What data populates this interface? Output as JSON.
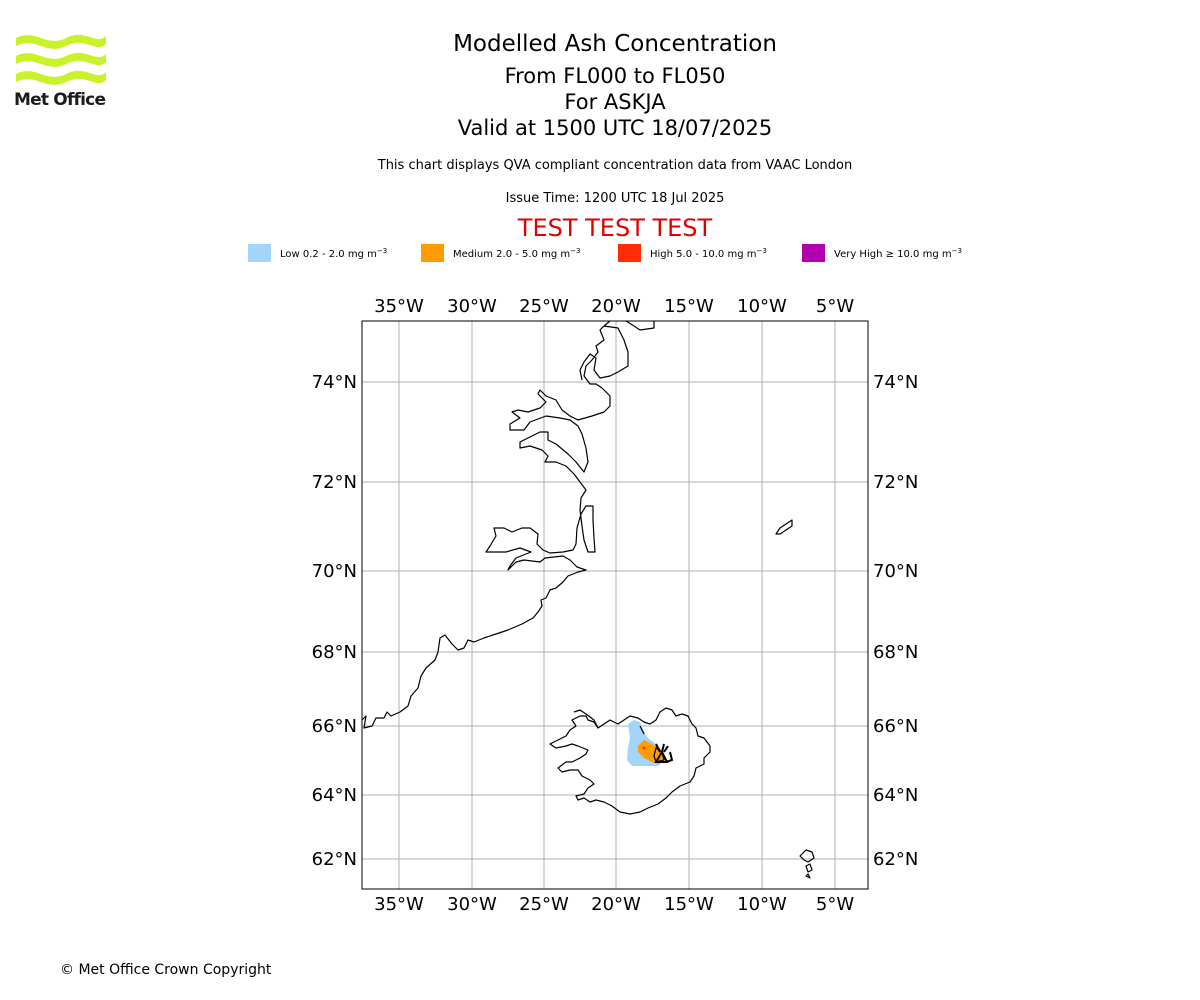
{
  "logo": {
    "text": "Met Office",
    "accent_color": "#c8f22a"
  },
  "title": {
    "main": "Modelled Ash Concentration",
    "levels": "From FL000 to FL050",
    "volcano": "For ASKJA",
    "valid": "Valid at 1500 UTC 18/07/2025"
  },
  "subtitle": "This chart displays QVA compliant concentration data from VAAC London",
  "issue_time": "Issue Time: 1200 UTC 18 Jul 2025",
  "test_banner": "TEST TEST TEST",
  "legend": [
    {
      "label": "Low 0.2 - 2.0 mg m",
      "color": "#a3d4f9"
    },
    {
      "label": "Medium 2.0 - 5.0 mg m",
      "color": "#ff9c00"
    },
    {
      "label": "High 5.0 - 10.0 mg m",
      "color": "#ff2d00"
    },
    {
      "label": "Very High ≥ 10.0 mg m",
      "color": "#b000b0"
    }
  ],
  "legend_unit_exponent": "−3",
  "map": {
    "lon_ticks": [
      "35°W",
      "30°W",
      "25°W",
      "20°W",
      "15°W",
      "10°W",
      "5°W"
    ],
    "lat_ticks": [
      "74°N",
      "72°N",
      "70°N",
      "68°N",
      "66°N",
      "64°N",
      "62°N"
    ],
    "grid": true,
    "grid_color": "#b0b0b0"
  },
  "copyright": "© Met Office Crown Copyright"
}
